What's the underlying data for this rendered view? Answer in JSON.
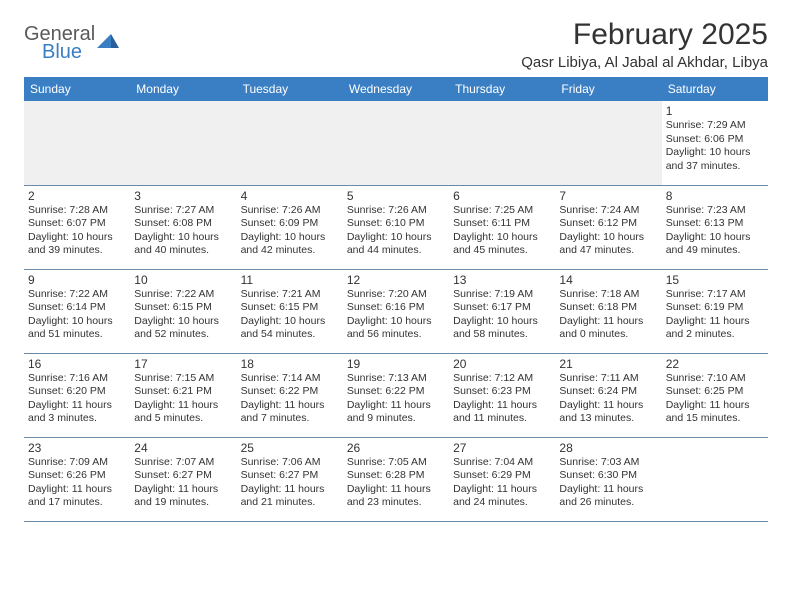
{
  "logo": {
    "word1": "General",
    "word2": "Blue"
  },
  "title": "February 2025",
  "location": "Qasr Libiya, Al Jabal al Akhdar, Libya",
  "colors": {
    "header_bg": "#3a7fc4",
    "header_text": "#ffffff",
    "border": "#6a8aaa",
    "spacer_bg": "#f0f0f0",
    "text": "#333333",
    "logo_gray": "#5a5a5a",
    "logo_blue": "#3a7fc4"
  },
  "weekdays": [
    "Sunday",
    "Monday",
    "Tuesday",
    "Wednesday",
    "Thursday",
    "Friday",
    "Saturday"
  ],
  "weeks": [
    [
      null,
      null,
      null,
      null,
      null,
      null,
      {
        "d": "1",
        "sr": "7:29 AM",
        "ss": "6:06 PM",
        "dl": "10 hours and 37 minutes."
      }
    ],
    [
      {
        "d": "2",
        "sr": "7:28 AM",
        "ss": "6:07 PM",
        "dl": "10 hours and 39 minutes."
      },
      {
        "d": "3",
        "sr": "7:27 AM",
        "ss": "6:08 PM",
        "dl": "10 hours and 40 minutes."
      },
      {
        "d": "4",
        "sr": "7:26 AM",
        "ss": "6:09 PM",
        "dl": "10 hours and 42 minutes."
      },
      {
        "d": "5",
        "sr": "7:26 AM",
        "ss": "6:10 PM",
        "dl": "10 hours and 44 minutes."
      },
      {
        "d": "6",
        "sr": "7:25 AM",
        "ss": "6:11 PM",
        "dl": "10 hours and 45 minutes."
      },
      {
        "d": "7",
        "sr": "7:24 AM",
        "ss": "6:12 PM",
        "dl": "10 hours and 47 minutes."
      },
      {
        "d": "8",
        "sr": "7:23 AM",
        "ss": "6:13 PM",
        "dl": "10 hours and 49 minutes."
      }
    ],
    [
      {
        "d": "9",
        "sr": "7:22 AM",
        "ss": "6:14 PM",
        "dl": "10 hours and 51 minutes."
      },
      {
        "d": "10",
        "sr": "7:22 AM",
        "ss": "6:15 PM",
        "dl": "10 hours and 52 minutes."
      },
      {
        "d": "11",
        "sr": "7:21 AM",
        "ss": "6:15 PM",
        "dl": "10 hours and 54 minutes."
      },
      {
        "d": "12",
        "sr": "7:20 AM",
        "ss": "6:16 PM",
        "dl": "10 hours and 56 minutes."
      },
      {
        "d": "13",
        "sr": "7:19 AM",
        "ss": "6:17 PM",
        "dl": "10 hours and 58 minutes."
      },
      {
        "d": "14",
        "sr": "7:18 AM",
        "ss": "6:18 PM",
        "dl": "11 hours and 0 minutes."
      },
      {
        "d": "15",
        "sr": "7:17 AM",
        "ss": "6:19 PM",
        "dl": "11 hours and 2 minutes."
      }
    ],
    [
      {
        "d": "16",
        "sr": "7:16 AM",
        "ss": "6:20 PM",
        "dl": "11 hours and 3 minutes."
      },
      {
        "d": "17",
        "sr": "7:15 AM",
        "ss": "6:21 PM",
        "dl": "11 hours and 5 minutes."
      },
      {
        "d": "18",
        "sr": "7:14 AM",
        "ss": "6:22 PM",
        "dl": "11 hours and 7 minutes."
      },
      {
        "d": "19",
        "sr": "7:13 AM",
        "ss": "6:22 PM",
        "dl": "11 hours and 9 minutes."
      },
      {
        "d": "20",
        "sr": "7:12 AM",
        "ss": "6:23 PM",
        "dl": "11 hours and 11 minutes."
      },
      {
        "d": "21",
        "sr": "7:11 AM",
        "ss": "6:24 PM",
        "dl": "11 hours and 13 minutes."
      },
      {
        "d": "22",
        "sr": "7:10 AM",
        "ss": "6:25 PM",
        "dl": "11 hours and 15 minutes."
      }
    ],
    [
      {
        "d": "23",
        "sr": "7:09 AM",
        "ss": "6:26 PM",
        "dl": "11 hours and 17 minutes."
      },
      {
        "d": "24",
        "sr": "7:07 AM",
        "ss": "6:27 PM",
        "dl": "11 hours and 19 minutes."
      },
      {
        "d": "25",
        "sr": "7:06 AM",
        "ss": "6:27 PM",
        "dl": "11 hours and 21 minutes."
      },
      {
        "d": "26",
        "sr": "7:05 AM",
        "ss": "6:28 PM",
        "dl": "11 hours and 23 minutes."
      },
      {
        "d": "27",
        "sr": "7:04 AM",
        "ss": "6:29 PM",
        "dl": "11 hours and 24 minutes."
      },
      {
        "d": "28",
        "sr": "7:03 AM",
        "ss": "6:30 PM",
        "dl": "11 hours and 26 minutes."
      },
      null
    ]
  ]
}
